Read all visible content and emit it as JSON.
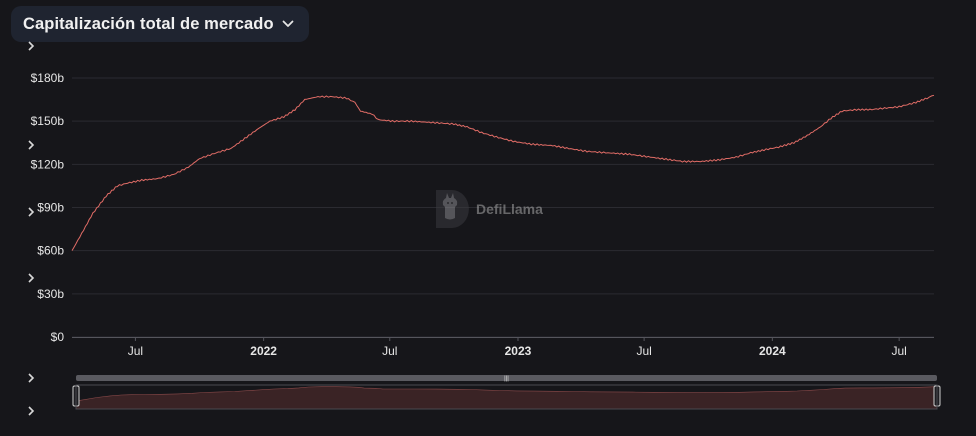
{
  "header": {
    "title": "Capitalización total de mercado",
    "dropdown_icon": "chevron-down-icon"
  },
  "watermark": {
    "text": "DefiLlama",
    "icon": "llama-logo-icon"
  },
  "colors": {
    "background": "#16161a",
    "line": "#e06c66",
    "grid": "#2b2b31",
    "axis_text": "#e6e6e6",
    "slider_fill": "#3a2325"
  },
  "chart_data": {
    "type": "line",
    "title": "",
    "xlabel": "",
    "ylabel": "",
    "x_ticks": [
      "Jul",
      "2022",
      "Jul",
      "2023",
      "Jul",
      "2024",
      "Jul"
    ],
    "y_ticks": [
      "$0",
      "$30b",
      "$60b",
      "$90b",
      "$120b",
      "$150b",
      "$180b"
    ],
    "ylim": [
      0,
      180
    ],
    "grid": true,
    "series": [
      {
        "points": [
          [
            "2021-04-01",
            60
          ],
          [
            "2021-04-15",
            72
          ],
          [
            "2021-05-01",
            86
          ],
          [
            "2021-05-20",
            98
          ],
          [
            "2021-06-05",
            105
          ],
          [
            "2021-06-20",
            107
          ],
          [
            "2021-07-10",
            109
          ],
          [
            "2021-08-01",
            110
          ],
          [
            "2021-08-25",
            113
          ],
          [
            "2021-09-15",
            118
          ],
          [
            "2021-10-01",
            124
          ],
          [
            "2021-10-25",
            128
          ],
          [
            "2021-11-15",
            131
          ],
          [
            "2021-12-05",
            138
          ],
          [
            "2021-12-25",
            145
          ],
          [
            "2022-01-10",
            150
          ],
          [
            "2022-01-30",
            153
          ],
          [
            "2022-02-15",
            158
          ],
          [
            "2022-03-01",
            165
          ],
          [
            "2022-03-20",
            167
          ],
          [
            "2022-04-10",
            167
          ],
          [
            "2022-04-30",
            166
          ],
          [
            "2022-05-12",
            163
          ],
          [
            "2022-05-20",
            157
          ],
          [
            "2022-06-05",
            155
          ],
          [
            "2022-06-15",
            151
          ],
          [
            "2022-07-05",
            150
          ],
          [
            "2022-08-01",
            150
          ],
          [
            "2022-09-01",
            149
          ],
          [
            "2022-10-01",
            148
          ],
          [
            "2022-10-20",
            146
          ],
          [
            "2022-11-10",
            142
          ],
          [
            "2022-12-01",
            139
          ],
          [
            "2022-12-25",
            136
          ],
          [
            "2023-01-20",
            134
          ],
          [
            "2023-02-20",
            133
          ],
          [
            "2023-03-15",
            131
          ],
          [
            "2023-04-10",
            129
          ],
          [
            "2023-05-10",
            128
          ],
          [
            "2023-06-10",
            127
          ],
          [
            "2023-07-10",
            125
          ],
          [
            "2023-08-10",
            123
          ],
          [
            "2023-08-25",
            122
          ],
          [
            "2023-09-20",
            122
          ],
          [
            "2023-10-15",
            123
          ],
          [
            "2023-11-10",
            125
          ],
          [
            "2023-12-01",
            128
          ],
          [
            "2023-12-20",
            130
          ],
          [
            "2024-01-10",
            132
          ],
          [
            "2024-02-01",
            135
          ],
          [
            "2024-02-20",
            140
          ],
          [
            "2024-03-10",
            146
          ],
          [
            "2024-03-25",
            152
          ],
          [
            "2024-04-10",
            157
          ],
          [
            "2024-05-01",
            158
          ],
          [
            "2024-05-20",
            158
          ],
          [
            "2024-06-10",
            159
          ],
          [
            "2024-07-01",
            160
          ],
          [
            "2024-07-25",
            163
          ],
          [
            "2024-08-10",
            166
          ],
          [
            "2024-08-20",
            168
          ]
        ]
      }
    ]
  }
}
